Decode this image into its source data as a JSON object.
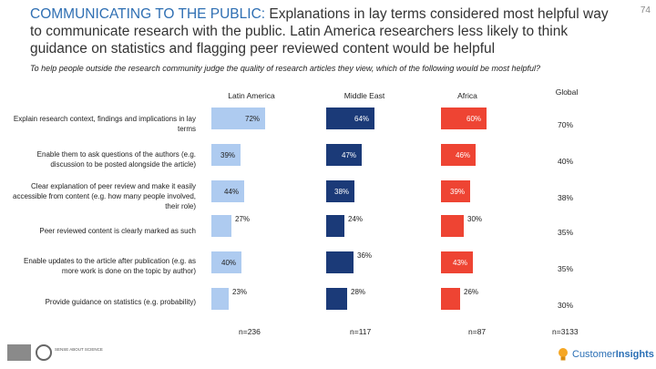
{
  "page_number": "74",
  "title_highlight": "COMMUNICATING TO THE PUBLIC:",
  "title_rest": " Explanations in lay terms considered most helpful way to communicate research with the public. Latin America researchers less likely to think guidance on statistics and flagging peer reviewed content would be helpful",
  "subtitle": "To help people outside the research community judge the quality of research articles they view, which of the following would be most helpful?",
  "logos": {
    "left": "SENSE ABOUT SCIENCE",
    "right_brand": "Customer",
    "right_brand_bold": "Insights"
  },
  "chart_data": {
    "type": "bar",
    "orientation": "horizontal",
    "categories": [
      "Explain research context, findings and implications in lay terms",
      "Enable them to ask questions of the authors (e.g. discussion to be posted alongside the article)",
      "Clear explanation of peer review and make it easily accessible from content (e.g. how many people involved, their role)",
      "Peer reviewed content is clearly marked as such",
      "Enable updates to the article after publication (e.g. as more work is done on the topic by author)",
      "Provide guidance on statistics (e.g. probability)"
    ],
    "series": [
      {
        "name": "Latin America",
        "values": [
          72,
          39,
          44,
          27,
          40,
          23
        ],
        "color": "#aecbf0",
        "label_color": "#222222",
        "n": "n=236"
      },
      {
        "name": "Middle East",
        "values": [
          64,
          47,
          38,
          24,
          36,
          28
        ],
        "color": "#1b3a78",
        "label_color": "#ffffff",
        "n": "n=117"
      },
      {
        "name": "Africa",
        "values": [
          60,
          46,
          39,
          30,
          43,
          26
        ],
        "color": "#ee4433",
        "label_color": "#ffffff",
        "n": "n=87"
      }
    ],
    "value_labels": [
      [
        "72%",
        "39%",
        "44%",
        "27%",
        "40%",
        "23%"
      ],
      [
        "64%",
        "47%",
        "38%",
        "24%",
        "36%",
        "28%"
      ],
      [
        "60%",
        "46%",
        "39%",
        "30%",
        "43%",
        "26%"
      ]
    ],
    "global": {
      "name": "Global",
      "values": [
        "70%",
        "40%",
        "38%",
        "35%",
        "35%",
        "30%"
      ],
      "n": "n=3133"
    },
    "xlim": [
      0,
      100
    ]
  }
}
